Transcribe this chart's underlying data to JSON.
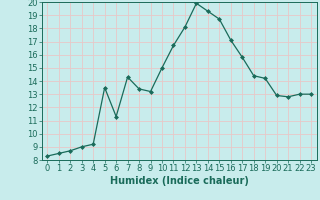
{
  "x": [
    0,
    1,
    2,
    3,
    4,
    5,
    6,
    7,
    8,
    9,
    10,
    11,
    12,
    13,
    14,
    15,
    16,
    17,
    18,
    19,
    20,
    21,
    22,
    23
  ],
  "y": [
    8.3,
    8.5,
    8.7,
    9.0,
    9.2,
    13.5,
    11.3,
    14.3,
    13.4,
    13.2,
    15.0,
    16.7,
    18.1,
    19.9,
    19.3,
    18.7,
    17.1,
    15.8,
    14.4,
    14.2,
    12.9,
    12.8,
    13.0,
    13.0
  ],
  "line_color": "#1a6b5a",
  "marker": "D",
  "marker_size": 2.0,
  "bg_color": "#c8ecec",
  "grid_color": "#e8c8c8",
  "xlabel": "Humidex (Indice chaleur)",
  "xlim": [
    -0.5,
    23.5
  ],
  "ylim": [
    8,
    20
  ],
  "xticks": [
    0,
    1,
    2,
    3,
    4,
    5,
    6,
    7,
    8,
    9,
    10,
    11,
    12,
    13,
    14,
    15,
    16,
    17,
    18,
    19,
    20,
    21,
    22,
    23
  ],
  "yticks": [
    8,
    9,
    10,
    11,
    12,
    13,
    14,
    15,
    16,
    17,
    18,
    19,
    20
  ],
  "tick_color": "#1a6b5a",
  "label_color": "#1a6b5a",
  "xlabel_fontsize": 7,
  "tick_fontsize": 6,
  "linewidth": 0.9
}
